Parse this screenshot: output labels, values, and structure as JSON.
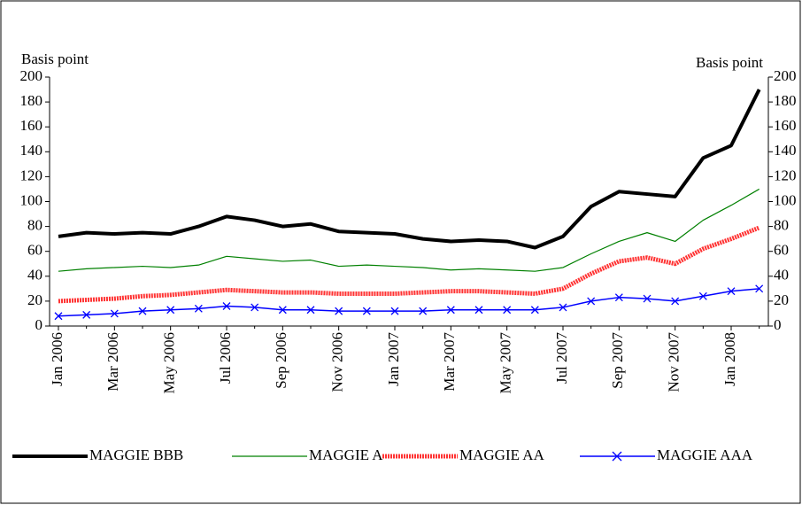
{
  "chart_data": {
    "type": "line",
    "y_label": "Basis point",
    "y2_label": "Basis point",
    "categories": [
      "Jan 2006",
      null,
      "Mar 2006",
      null,
      "May 2006",
      null,
      "Jul 2006",
      null,
      "Sep 2006",
      null,
      "Nov 2006",
      null,
      "Jan 2007",
      null,
      "Mar 2007",
      null,
      "May 2007",
      null,
      "Jul 2007",
      null,
      "Sep 2007",
      null,
      "Nov 2007",
      null,
      "Jan 2008",
      null
    ],
    "series": [
      {
        "name": "MAGGIE BBB",
        "color": "#000000",
        "width": 4,
        "values": [
          72,
          75,
          74,
          75,
          74,
          80,
          88,
          85,
          80,
          82,
          76,
          75,
          74,
          70,
          68,
          69,
          68,
          63,
          72,
          96,
          108,
          106,
          104,
          135,
          145,
          190
        ]
      },
      {
        "name": "MAGGIE A",
        "color": "#008000",
        "width": 1.2,
        "values": [
          44,
          46,
          47,
          48,
          47,
          49,
          56,
          54,
          52,
          53,
          48,
          49,
          48,
          47,
          45,
          46,
          45,
          44,
          47,
          58,
          68,
          75,
          68,
          85,
          97,
          110
        ]
      },
      {
        "name": "MAGGIE AA",
        "color": "#ff3333",
        "width": 5,
        "values": [
          20,
          21,
          22,
          24,
          25,
          27,
          29,
          28,
          27,
          27,
          26,
          26,
          26,
          27,
          28,
          28,
          27,
          26,
          30,
          42,
          52,
          55,
          50,
          62,
          70,
          79
        ]
      },
      {
        "name": "MAGGIE AAA",
        "color": "#0000ff",
        "width": 1.5,
        "marker": "x",
        "values": [
          8,
          9,
          10,
          12,
          13,
          14,
          16,
          15,
          13,
          13,
          12,
          12,
          12,
          12,
          13,
          13,
          13,
          13,
          15,
          20,
          23,
          22,
          20,
          24,
          28,
          30
        ]
      }
    ],
    "ylim": [
      0,
      200
    ],
    "yticks": [
      0,
      20,
      40,
      60,
      80,
      100,
      120,
      140,
      160,
      180,
      200
    ],
    "y2lim": [
      0,
      200
    ],
    "y2ticks": [
      0,
      20,
      40,
      60,
      80,
      100,
      120,
      140,
      160,
      180,
      200
    ],
    "legend": "bottom"
  }
}
